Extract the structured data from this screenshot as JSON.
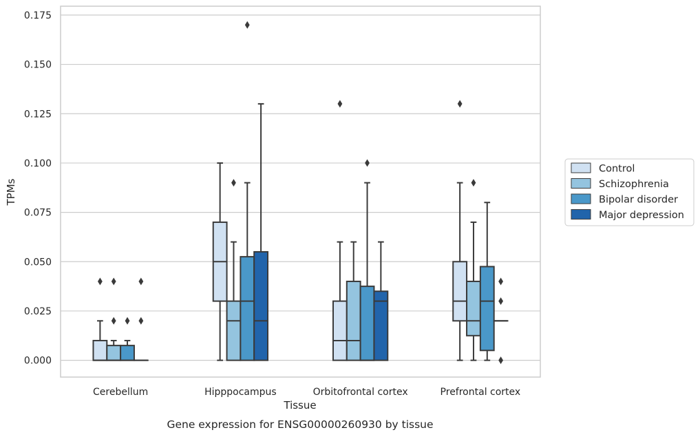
{
  "chart_data": {
    "type": "boxplot",
    "title": "",
    "xlabel": "Tissue",
    "ylabel": "TPMs",
    "caption": "Gene expression for ENSG00000260930 by tissue",
    "ylim": [
      -0.0085,
      0.1795
    ],
    "yticks": [
      0.0,
      0.025,
      0.05,
      0.075,
      0.1,
      0.125,
      0.15,
      0.175
    ],
    "ytick_labels": [
      "0.000",
      "0.025",
      "0.050",
      "0.075",
      "0.100",
      "0.125",
      "0.150",
      "0.175"
    ],
    "grid": "horizontal",
    "legend_position": "right",
    "categories": [
      "Cerebellum",
      "Hipppocampus",
      "Orbitofrontal cortex",
      "Prefrontal cortex"
    ],
    "series": [
      {
        "name": "Control",
        "color": "#d0e1f2",
        "boxes": [
          {
            "q1": 0.0,
            "median": 0.0,
            "q3": 0.01,
            "whisker_low": 0.0,
            "whisker_high": 0.02,
            "outliers": [
              0.04
            ]
          },
          {
            "q1": 0.03,
            "median": 0.05,
            "q3": 0.07,
            "whisker_low": 0.0,
            "whisker_high": 0.1,
            "outliers": []
          },
          {
            "q1": 0.0,
            "median": 0.01,
            "q3": 0.03,
            "whisker_low": 0.0,
            "whisker_high": 0.06,
            "outliers": [
              0.13
            ]
          },
          {
            "q1": 0.02,
            "median": 0.03,
            "q3": 0.05,
            "whisker_low": 0.0,
            "whisker_high": 0.09,
            "outliers": [
              0.13
            ]
          }
        ]
      },
      {
        "name": "Schizophrenia",
        "color": "#94c4df",
        "boxes": [
          {
            "q1": 0.0,
            "median": 0.0,
            "q3": 0.0075,
            "whisker_low": 0.0,
            "whisker_high": 0.01,
            "outliers": [
              0.02,
              0.04
            ]
          },
          {
            "q1": 0.0,
            "median": 0.02,
            "q3": 0.03,
            "whisker_low": 0.0,
            "whisker_high": 0.06,
            "outliers": [
              0.09
            ]
          },
          {
            "q1": 0.0,
            "median": 0.01,
            "q3": 0.04,
            "whisker_low": 0.0,
            "whisker_high": 0.06,
            "outliers": []
          },
          {
            "q1": 0.0125,
            "median": 0.02,
            "q3": 0.04,
            "whisker_low": 0.0,
            "whisker_high": 0.07,
            "outliers": [
              0.09
            ]
          }
        ]
      },
      {
        "name": "Bipolar disorder",
        "color": "#4a98c9",
        "boxes": [
          {
            "q1": 0.0,
            "median": 0.0,
            "q3": 0.0075,
            "whisker_low": 0.0,
            "whisker_high": 0.01,
            "outliers": [
              0.02
            ]
          },
          {
            "q1": 0.0,
            "median": 0.03,
            "q3": 0.0525,
            "whisker_low": 0.0,
            "whisker_high": 0.09,
            "outliers": [
              0.17
            ]
          },
          {
            "q1": 0.0,
            "median": 0.0,
            "q3": 0.0375,
            "whisker_low": 0.0,
            "whisker_high": 0.09,
            "outliers": [
              0.1
            ]
          },
          {
            "q1": 0.005,
            "median": 0.03,
            "q3": 0.0475,
            "whisker_low": 0.0,
            "whisker_high": 0.08,
            "outliers": []
          }
        ]
      },
      {
        "name": "Major depression",
        "color": "#2164ab",
        "boxes": [
          {
            "q1": 0.0,
            "median": 0.0,
            "q3": 0.0,
            "whisker_low": 0.0,
            "whisker_high": 0.0,
            "outliers": [
              0.02,
              0.04
            ]
          },
          {
            "q1": 0.0,
            "median": 0.02,
            "q3": 0.055,
            "whisker_low": 0.0,
            "whisker_high": 0.13,
            "outliers": []
          },
          {
            "q1": 0.0,
            "median": 0.03,
            "q3": 0.035,
            "whisker_low": 0.0,
            "whisker_high": 0.06,
            "outliers": []
          },
          {
            "q1": 0.02,
            "median": 0.02,
            "q3": 0.02,
            "whisker_low": 0.02,
            "whisker_high": 0.02,
            "outliers": [
              0.0,
              0.03,
              0.04
            ]
          }
        ]
      }
    ]
  }
}
